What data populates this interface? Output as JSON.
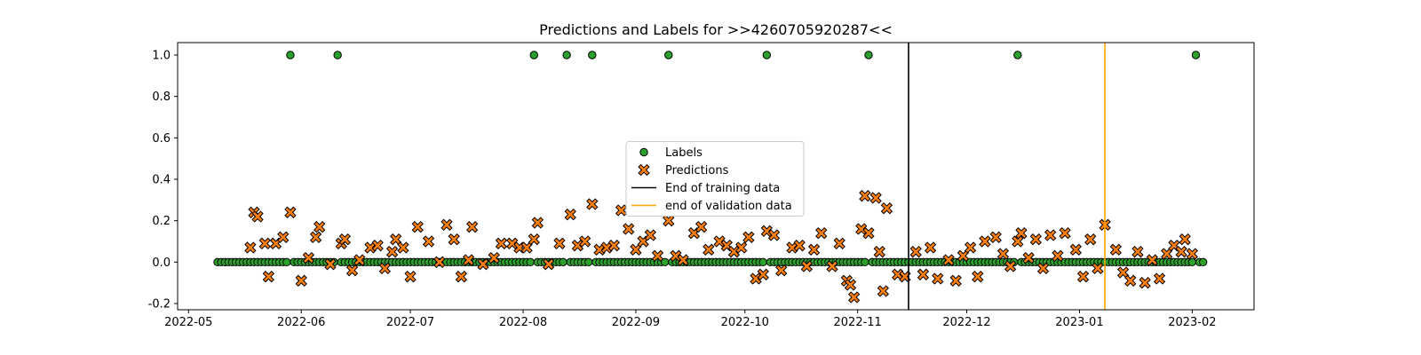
{
  "chart_data": {
    "type": "scatter",
    "title": "Predictions and Labels for >>4260705920287<<",
    "xlabel": "",
    "ylabel": "",
    "x_scale": "time",
    "xlim": [
      "2022-04-28",
      "2023-02-18"
    ],
    "ylim": [
      -0.23,
      1.06
    ],
    "xticks": [
      "2022-05",
      "2022-06",
      "2022-07",
      "2022-08",
      "2022-09",
      "2022-10",
      "2022-11",
      "2022-12",
      "2023-01",
      "2023-02"
    ],
    "yticks": [
      "-0.2",
      "0.0",
      "0.2",
      "0.4",
      "0.6",
      "0.8",
      "1.0"
    ],
    "grid": false,
    "legend_position": "center",
    "label_style": {
      "color": "#2ca02c",
      "marker": "circle"
    },
    "prediction_style": {
      "color": "#ff7f0e",
      "marker": "x"
    },
    "series": [
      {
        "name": "Labels",
        "start": "2022-05-09",
        "end": "2023-02-04",
        "baseline": 0.0,
        "positive_dates": [
          "2022-05-29",
          "2022-06-11",
          "2022-08-04",
          "2022-08-13",
          "2022-08-20",
          "2022-09-10",
          "2022-10-07",
          "2022-11-04",
          "2022-12-15",
          "2023-02-02"
        ]
      },
      {
        "name": "Predictions",
        "points": [
          [
            "2022-05-18",
            0.07
          ],
          [
            "2022-05-19",
            0.24
          ],
          [
            "2022-05-20",
            0.22
          ],
          [
            "2022-05-22",
            0.09
          ],
          [
            "2022-05-23",
            -0.07
          ],
          [
            "2022-05-25",
            0.09
          ],
          [
            "2022-05-27",
            0.12
          ],
          [
            "2022-05-29",
            0.24
          ],
          [
            "2022-06-01",
            -0.09
          ],
          [
            "2022-06-03",
            0.02
          ],
          [
            "2022-06-05",
            0.12
          ],
          [
            "2022-06-06",
            0.17
          ],
          [
            "2022-06-09",
            -0.01
          ],
          [
            "2022-06-12",
            0.09
          ],
          [
            "2022-06-13",
            0.11
          ],
          [
            "2022-06-15",
            -0.04
          ],
          [
            "2022-06-17",
            0.01
          ],
          [
            "2022-06-20",
            0.07
          ],
          [
            "2022-06-22",
            0.08
          ],
          [
            "2022-06-24",
            -0.03
          ],
          [
            "2022-06-26",
            0.05
          ],
          [
            "2022-06-27",
            0.11
          ],
          [
            "2022-06-29",
            0.07
          ],
          [
            "2022-07-01",
            -0.07
          ],
          [
            "2022-07-03",
            0.17
          ],
          [
            "2022-07-06",
            0.1
          ],
          [
            "2022-07-09",
            0.0
          ],
          [
            "2022-07-11",
            0.18
          ],
          [
            "2022-07-13",
            0.11
          ],
          [
            "2022-07-15",
            -0.07
          ],
          [
            "2022-07-17",
            0.01
          ],
          [
            "2022-07-18",
            0.17
          ],
          [
            "2022-07-21",
            -0.01
          ],
          [
            "2022-07-24",
            0.02
          ],
          [
            "2022-07-26",
            0.09
          ],
          [
            "2022-07-29",
            0.09
          ],
          [
            "2022-07-31",
            0.07
          ],
          [
            "2022-08-02",
            0.07
          ],
          [
            "2022-08-04",
            0.11
          ],
          [
            "2022-08-05",
            0.19
          ],
          [
            "2022-08-08",
            -0.01
          ],
          [
            "2022-08-11",
            0.09
          ],
          [
            "2022-08-14",
            0.23
          ],
          [
            "2022-08-16",
            0.08
          ],
          [
            "2022-08-18",
            0.1
          ],
          [
            "2022-08-20",
            0.28
          ],
          [
            "2022-08-22",
            0.06
          ],
          [
            "2022-08-24",
            0.07
          ],
          [
            "2022-08-26",
            0.08
          ],
          [
            "2022-08-28",
            0.25
          ],
          [
            "2022-08-30",
            0.16
          ],
          [
            "2022-09-01",
            0.06
          ],
          [
            "2022-09-03",
            0.1
          ],
          [
            "2022-09-05",
            0.13
          ],
          [
            "2022-09-07",
            0.03
          ],
          [
            "2022-09-10",
            0.2
          ],
          [
            "2022-09-12",
            0.03
          ],
          [
            "2022-09-14",
            0.01
          ],
          [
            "2022-09-17",
            0.14
          ],
          [
            "2022-09-19",
            0.17
          ],
          [
            "2022-09-21",
            0.06
          ],
          [
            "2022-09-24",
            0.1
          ],
          [
            "2022-09-26",
            0.08
          ],
          [
            "2022-09-28",
            0.05
          ],
          [
            "2022-09-30",
            0.07
          ],
          [
            "2022-10-02",
            0.12
          ],
          [
            "2022-10-04",
            -0.08
          ],
          [
            "2022-10-06",
            -0.06
          ],
          [
            "2022-10-07",
            0.15
          ],
          [
            "2022-10-09",
            0.13
          ],
          [
            "2022-10-11",
            -0.04
          ],
          [
            "2022-10-14",
            0.07
          ],
          [
            "2022-10-16",
            0.08
          ],
          [
            "2022-10-18",
            -0.02
          ],
          [
            "2022-10-20",
            0.06
          ],
          [
            "2022-10-22",
            0.14
          ],
          [
            "2022-10-25",
            -0.02
          ],
          [
            "2022-10-27",
            0.09
          ],
          [
            "2022-10-29",
            -0.09
          ],
          [
            "2022-10-30",
            -0.11
          ],
          [
            "2022-10-31",
            -0.17
          ],
          [
            "2022-11-02",
            0.16
          ],
          [
            "2022-11-03",
            0.32
          ],
          [
            "2022-11-04",
            0.14
          ],
          [
            "2022-11-06",
            0.31
          ],
          [
            "2022-11-07",
            0.05
          ],
          [
            "2022-11-08",
            -0.14
          ],
          [
            "2022-11-09",
            0.26
          ],
          [
            "2022-11-12",
            -0.06
          ],
          [
            "2022-11-14",
            -0.07
          ],
          [
            "2022-11-17",
            0.05
          ],
          [
            "2022-11-19",
            -0.06
          ],
          [
            "2022-11-21",
            0.07
          ],
          [
            "2022-11-23",
            -0.08
          ],
          [
            "2022-11-26",
            0.01
          ],
          [
            "2022-11-28",
            -0.09
          ],
          [
            "2022-11-30",
            0.03
          ],
          [
            "2022-12-02",
            0.07
          ],
          [
            "2022-12-04",
            -0.07
          ],
          [
            "2022-12-06",
            0.1
          ],
          [
            "2022-12-09",
            0.12
          ],
          [
            "2022-12-11",
            0.04
          ],
          [
            "2022-12-13",
            -0.02
          ],
          [
            "2022-12-15",
            0.1
          ],
          [
            "2022-12-16",
            0.14
          ],
          [
            "2022-12-18",
            0.02
          ],
          [
            "2022-12-20",
            0.11
          ],
          [
            "2022-12-22",
            -0.03
          ],
          [
            "2022-12-24",
            0.13
          ],
          [
            "2022-12-26",
            0.03
          ],
          [
            "2022-12-28",
            0.14
          ],
          [
            "2022-12-31",
            0.06
          ],
          [
            "2023-01-02",
            -0.07
          ],
          [
            "2023-01-04",
            0.11
          ],
          [
            "2023-01-06",
            -0.03
          ],
          [
            "2023-01-08",
            0.18
          ],
          [
            "2023-01-11",
            0.06
          ],
          [
            "2023-01-13",
            -0.05
          ],
          [
            "2023-01-15",
            -0.09
          ],
          [
            "2023-01-17",
            0.05
          ],
          [
            "2023-01-19",
            -0.1
          ],
          [
            "2023-01-21",
            0.01
          ],
          [
            "2023-01-23",
            -0.08
          ],
          [
            "2023-01-25",
            0.04
          ],
          [
            "2023-01-27",
            0.08
          ],
          [
            "2023-01-29",
            0.05
          ],
          [
            "2023-01-30",
            0.11
          ],
          [
            "2023-02-01",
            0.04
          ]
        ]
      }
    ],
    "vlines": [
      {
        "name": "End of training data",
        "x": "2022-11-15",
        "color": "#000000"
      },
      {
        "name": "end of validation data",
        "x": "2023-01-08",
        "color": "#ffa500"
      }
    ]
  }
}
